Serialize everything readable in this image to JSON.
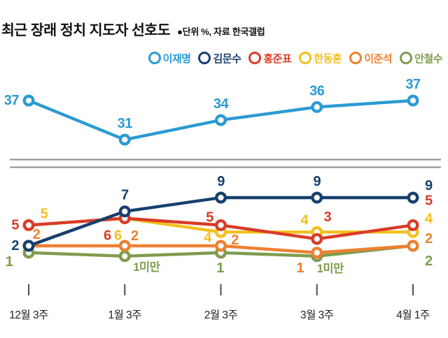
{
  "header": {
    "title": "최근 장래 정치 지도자 선호도",
    "subtitle": "●단위 %, 자료 한국갤럽"
  },
  "legend": {
    "items": [
      {
        "label": "이재명",
        "color": "#2b9ad3"
      },
      {
        "label": "김문수",
        "color": "#173f6f"
      },
      {
        "label": "홍준표",
        "color": "#d93b27"
      },
      {
        "label": "한동훈",
        "color": "#f3c01d"
      },
      {
        "label": "이준석",
        "color": "#ee8030"
      },
      {
        "label": "안철수",
        "color": "#7e9c4d"
      }
    ]
  },
  "chart_data": {
    "type": "line",
    "title": "최근 장래 정치 지도자 선호도",
    "unit": "%",
    "source": "한국갤럽",
    "categories": [
      "12월 3주",
      "1월 3주",
      "2월 3주",
      "3월 3주",
      "4월 1주"
    ],
    "axis_break": true,
    "grid": false,
    "legend_position": "top-right",
    "series": [
      {
        "key": "lee-jae-myung",
        "name": "이재명",
        "color": "#2b9ad3",
        "panel": "top",
        "values": [
          37,
          31,
          34,
          36,
          37
        ],
        "points": [
          {
            "v": 37,
            "label": "37",
            "pos": "left"
          },
          {
            "v": 31,
            "label": "31",
            "pos": "above"
          },
          {
            "v": 34,
            "label": "34",
            "pos": "above"
          },
          {
            "v": 36,
            "label": "36",
            "pos": "above"
          },
          {
            "v": 37,
            "label": "37",
            "pos": "above"
          }
        ]
      },
      {
        "key": "ahn-cheol-soo",
        "name": "안철수",
        "color": "#7e9c4d",
        "panel": "bottom",
        "values": [
          1,
          0.5,
          1,
          0.5,
          2
        ],
        "points": [
          {
            "v": 1,
            "label": "1",
            "pos": "custom",
            "dx": -28,
            "dy": 19
          },
          {
            "v": 0.5,
            "label": "1미만",
            "pos": "custom",
            "dx": 31,
            "dy": 21,
            "size": 16.5
          },
          {
            "v": 1,
            "label": "1",
            "pos": "custom",
            "dx": -1,
            "dy": 28
          },
          {
            "v": 0.5,
            "label": "1미만",
            "pos": "custom",
            "dx": 19,
            "dy": 23,
            "size": 16.5
          },
          {
            "v": 2,
            "label": "2",
            "pos": "custom",
            "dx": 17,
            "dy": 28,
            "anchor": "start"
          }
        ]
      },
      {
        "key": "lee-jun-seok",
        "name": "이준석",
        "color": "#ee8030",
        "panel": "bottom",
        "values": [
          2,
          2,
          2,
          1,
          2
        ],
        "points": [
          {
            "v": 2,
            "label": "2",
            "pos": "custom",
            "dx": 11,
            "dy": -10
          },
          {
            "v": 2,
            "label": "2",
            "pos": "custom",
            "dx": 14,
            "dy": -8
          },
          {
            "v": 2,
            "label": "2",
            "pos": "custom",
            "dx": 20,
            "dy": -2
          },
          {
            "v": 1,
            "label": "1",
            "pos": "custom",
            "dx": -24,
            "dy": 28
          },
          {
            "v": 2,
            "label": "2",
            "pos": "custom",
            "dx": 17,
            "dy": -4,
            "anchor": "start"
          }
        ]
      },
      {
        "key": "han-dong-hoon",
        "name": "한동훈",
        "color": "#f3c01d",
        "panel": "bottom",
        "values": [
          5,
          6,
          4,
          4,
          4
        ],
        "points": [
          {
            "v": 5,
            "label": "5",
            "pos": "custom",
            "dx": 22,
            "dy": -10
          },
          {
            "v": 6,
            "label": "6",
            "pos": "custom",
            "dx": -10,
            "dy": 31
          },
          {
            "v": 4,
            "label": "4",
            "pos": "custom",
            "dx": -19,
            "dy": 14
          },
          {
            "v": 4,
            "label": "4",
            "pos": "custom",
            "dx": -18,
            "dy": -11
          },
          {
            "v": 4,
            "label": "4",
            "pos": "custom",
            "dx": 17,
            "dy": -13,
            "anchor": "start"
          }
        ]
      },
      {
        "key": "hong-jun-pyo",
        "name": "홍준표",
        "color": "#d93b27",
        "panel": "bottom",
        "values": [
          5,
          6,
          5,
          3,
          5
        ],
        "points": [
          {
            "v": 5,
            "label": "5",
            "pos": "left"
          },
          {
            "v": 6,
            "label": "6",
            "pos": "custom",
            "dx": -25,
            "dy": 31
          },
          {
            "v": 5,
            "label": "5",
            "pos": "custom",
            "dx": -16,
            "dy": -5
          },
          {
            "v": 3,
            "label": "3",
            "pos": "custom",
            "dx": 15,
            "dy": -25
          },
          {
            "v": 5,
            "label": "5",
            "pos": "custom",
            "dx": 17,
            "dy": -29,
            "anchor": "start"
          }
        ]
      },
      {
        "key": "kim-moon-soo",
        "name": "김문수",
        "color": "#173f6f",
        "panel": "bottom",
        "values": [
          2,
          7,
          9,
          9,
          9
        ],
        "points": [
          {
            "v": 2,
            "label": "2",
            "pos": "left"
          },
          {
            "v": 7,
            "label": "7",
            "pos": "above"
          },
          {
            "v": 9,
            "label": "9",
            "pos": "above"
          },
          {
            "v": 9,
            "label": "9",
            "pos": "above"
          },
          {
            "v": 9,
            "label": "9",
            "pos": "custom",
            "dx": 17,
            "dy": -11,
            "anchor": "start"
          }
        ]
      }
    ]
  }
}
